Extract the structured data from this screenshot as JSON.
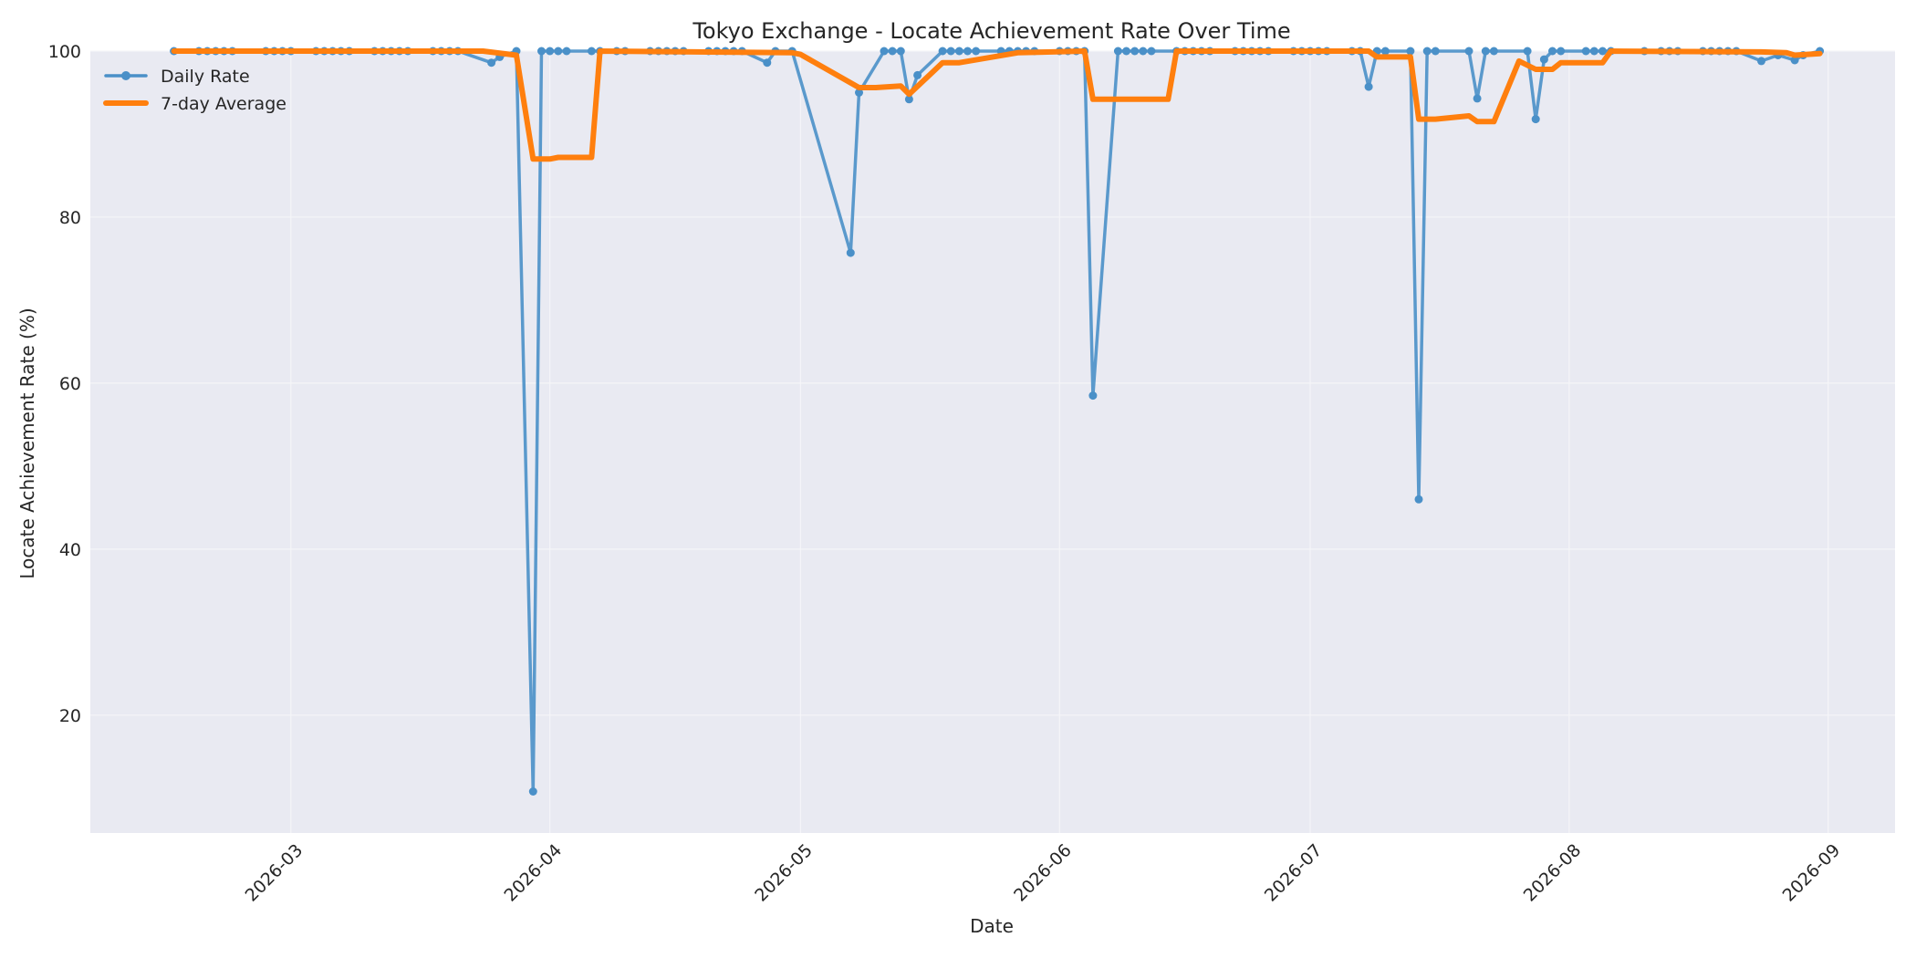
{
  "chart_data": {
    "type": "line",
    "title": "Tokyo Exchange - Locate Achievement Rate Over Time",
    "xlabel": "Date",
    "ylabel": "Locate Achievement Rate (%)",
    "xlim": [
      "2026-02-05",
      "2026-09-09"
    ],
    "ylim": [
      5.8,
      100
    ],
    "yticks": [
      20,
      40,
      60,
      80,
      100
    ],
    "xticks": [
      "2026-03-01",
      "2026-04-01",
      "2026-05-01",
      "2026-06-01",
      "2026-07-01",
      "2026-08-01",
      "2026-09-01"
    ],
    "xtick_labels": [
      "2026-03",
      "2026-04",
      "2026-05",
      "2026-06",
      "2026-07",
      "2026-08",
      "2026-09"
    ],
    "grid": true,
    "legend_position": "top-left",
    "colors": {
      "daily": "#4a90c8",
      "avg": "#ff7f0e",
      "plot_bg": "#e9eaf2",
      "grid": "#f5f5f8"
    },
    "series": [
      {
        "name": "Daily Rate",
        "style": "line-with-markers",
        "points": [
          [
            "2026-02-15",
            100
          ],
          [
            "2026-02-18",
            100
          ],
          [
            "2026-02-19",
            100
          ],
          [
            "2026-02-20",
            100
          ],
          [
            "2026-02-21",
            100
          ],
          [
            "2026-02-22",
            100
          ],
          [
            "2026-02-26",
            100
          ],
          [
            "2026-02-27",
            100
          ],
          [
            "2026-02-28",
            100
          ],
          [
            "2026-03-01",
            100
          ],
          [
            "2026-03-04",
            100
          ],
          [
            "2026-03-05",
            100
          ],
          [
            "2026-03-06",
            100
          ],
          [
            "2026-03-07",
            100
          ],
          [
            "2026-03-08",
            100
          ],
          [
            "2026-03-11",
            100
          ],
          [
            "2026-03-12",
            100
          ],
          [
            "2026-03-13",
            100
          ],
          [
            "2026-03-14",
            100
          ],
          [
            "2026-03-15",
            100
          ],
          [
            "2026-03-18",
            100
          ],
          [
            "2026-03-19",
            100
          ],
          [
            "2026-03-20",
            100
          ],
          [
            "2026-03-21",
            100
          ],
          [
            "2026-03-25",
            98.6
          ],
          [
            "2026-03-26",
            99.3
          ],
          [
            "2026-03-28",
            100
          ],
          [
            "2026-03-30",
            10.8
          ],
          [
            "2026-03-31",
            100
          ],
          [
            "2026-04-01",
            100
          ],
          [
            "2026-04-02",
            100
          ],
          [
            "2026-04-03",
            100
          ],
          [
            "2026-04-06",
            100
          ],
          [
            "2026-04-07",
            100
          ],
          [
            "2026-04-09",
            100
          ],
          [
            "2026-04-10",
            100
          ],
          [
            "2026-04-13",
            100
          ],
          [
            "2026-04-14",
            100
          ],
          [
            "2026-04-15",
            100
          ],
          [
            "2026-04-16",
            100
          ],
          [
            "2026-04-17",
            100
          ],
          [
            "2026-04-20",
            100
          ],
          [
            "2026-04-21",
            100
          ],
          [
            "2026-04-22",
            100
          ],
          [
            "2026-04-23",
            100
          ],
          [
            "2026-04-24",
            100
          ],
          [
            "2026-04-27",
            98.6
          ],
          [
            "2026-04-28",
            100
          ],
          [
            "2026-04-30",
            100
          ],
          [
            "2026-05-07",
            75.7
          ],
          [
            "2026-05-08",
            95.0
          ],
          [
            "2026-05-11",
            100
          ],
          [
            "2026-05-12",
            100
          ],
          [
            "2026-05-13",
            100
          ],
          [
            "2026-05-14",
            94.2
          ],
          [
            "2026-05-15",
            97.1
          ],
          [
            "2026-05-18",
            100
          ],
          [
            "2026-05-19",
            100
          ],
          [
            "2026-05-20",
            100
          ],
          [
            "2026-05-21",
            100
          ],
          [
            "2026-05-22",
            100
          ],
          [
            "2026-05-25",
            100
          ],
          [
            "2026-05-26",
            100
          ],
          [
            "2026-05-27",
            100
          ],
          [
            "2026-05-28",
            100
          ],
          [
            "2026-05-29",
            100
          ],
          [
            "2026-06-01",
            100
          ],
          [
            "2026-06-02",
            100
          ],
          [
            "2026-06-03",
            100
          ],
          [
            "2026-06-04",
            100
          ],
          [
            "2026-06-05",
            58.5
          ],
          [
            "2026-06-08",
            100
          ],
          [
            "2026-06-09",
            100
          ],
          [
            "2026-06-10",
            100
          ],
          [
            "2026-06-11",
            100
          ],
          [
            "2026-06-12",
            100
          ],
          [
            "2026-06-15",
            100
          ],
          [
            "2026-06-16",
            100
          ],
          [
            "2026-06-17",
            100
          ],
          [
            "2026-06-18",
            100
          ],
          [
            "2026-06-19",
            100
          ],
          [
            "2026-06-22",
            100
          ],
          [
            "2026-06-23",
            100
          ],
          [
            "2026-06-24",
            100
          ],
          [
            "2026-06-25",
            100
          ],
          [
            "2026-06-26",
            100
          ],
          [
            "2026-06-29",
            100
          ],
          [
            "2026-06-30",
            100
          ],
          [
            "2026-07-01",
            100
          ],
          [
            "2026-07-02",
            100
          ],
          [
            "2026-07-03",
            100
          ],
          [
            "2026-07-06",
            100
          ],
          [
            "2026-07-07",
            100
          ],
          [
            "2026-07-08",
            95.7
          ],
          [
            "2026-07-09",
            100
          ],
          [
            "2026-07-10",
            100
          ],
          [
            "2026-07-13",
            100
          ],
          [
            "2026-07-14",
            46.0
          ],
          [
            "2026-07-15",
            100
          ],
          [
            "2026-07-16",
            100
          ],
          [
            "2026-07-20",
            100
          ],
          [
            "2026-07-21",
            94.3
          ],
          [
            "2026-07-22",
            100
          ],
          [
            "2026-07-23",
            100
          ],
          [
            "2026-07-27",
            100
          ],
          [
            "2026-07-28",
            91.8
          ],
          [
            "2026-07-29",
            99.0
          ],
          [
            "2026-07-30",
            100
          ],
          [
            "2026-07-31",
            100
          ],
          [
            "2026-08-03",
            100
          ],
          [
            "2026-08-04",
            100
          ],
          [
            "2026-08-05",
            100
          ],
          [
            "2026-08-06",
            100
          ],
          [
            "2026-08-10",
            100
          ],
          [
            "2026-08-12",
            100
          ],
          [
            "2026-08-13",
            100
          ],
          [
            "2026-08-14",
            100
          ],
          [
            "2026-08-17",
            100
          ],
          [
            "2026-08-18",
            100
          ],
          [
            "2026-08-19",
            100
          ],
          [
            "2026-08-20",
            100
          ],
          [
            "2026-08-21",
            100
          ],
          [
            "2026-08-24",
            98.8
          ],
          [
            "2026-08-26",
            99.5
          ],
          [
            "2026-08-28",
            98.9
          ],
          [
            "2026-08-29",
            99.5
          ],
          [
            "2026-08-31",
            100
          ]
        ]
      },
      {
        "name": "7-day Average",
        "style": "thick-line",
        "points": [
          [
            "2026-02-15",
            100
          ],
          [
            "2026-03-24",
            100
          ],
          [
            "2026-03-28",
            99.5
          ],
          [
            "2026-03-30",
            87.0
          ],
          [
            "2026-04-01",
            87.0
          ],
          [
            "2026-04-02",
            87.2
          ],
          [
            "2026-04-06",
            87.2
          ],
          [
            "2026-04-07",
            100
          ],
          [
            "2026-04-30",
            99.8
          ],
          [
            "2026-05-01",
            99.6
          ],
          [
            "2026-05-08",
            95.6
          ],
          [
            "2026-05-10",
            95.6
          ],
          [
            "2026-05-13",
            95.8
          ],
          [
            "2026-05-14",
            94.8
          ],
          [
            "2026-05-18",
            98.6
          ],
          [
            "2026-05-20",
            98.6
          ],
          [
            "2026-05-27",
            99.8
          ],
          [
            "2026-06-04",
            100
          ],
          [
            "2026-06-05",
            94.2
          ],
          [
            "2026-06-14",
            94.2
          ],
          [
            "2026-06-15",
            100
          ],
          [
            "2026-07-08",
            100
          ],
          [
            "2026-07-09",
            99.3
          ],
          [
            "2026-07-13",
            99.3
          ],
          [
            "2026-07-14",
            91.8
          ],
          [
            "2026-07-16",
            91.8
          ],
          [
            "2026-07-20",
            92.2
          ],
          [
            "2026-07-21",
            91.5
          ],
          [
            "2026-07-23",
            91.5
          ],
          [
            "2026-07-26",
            98.8
          ],
          [
            "2026-07-28",
            97.8
          ],
          [
            "2026-07-30",
            97.8
          ],
          [
            "2026-07-31",
            98.6
          ],
          [
            "2026-08-05",
            98.6
          ],
          [
            "2026-08-06",
            100
          ],
          [
            "2026-08-24",
            99.9
          ],
          [
            "2026-08-27",
            99.8
          ],
          [
            "2026-08-28",
            99.5
          ],
          [
            "2026-08-31",
            99.7
          ]
        ]
      }
    ]
  }
}
